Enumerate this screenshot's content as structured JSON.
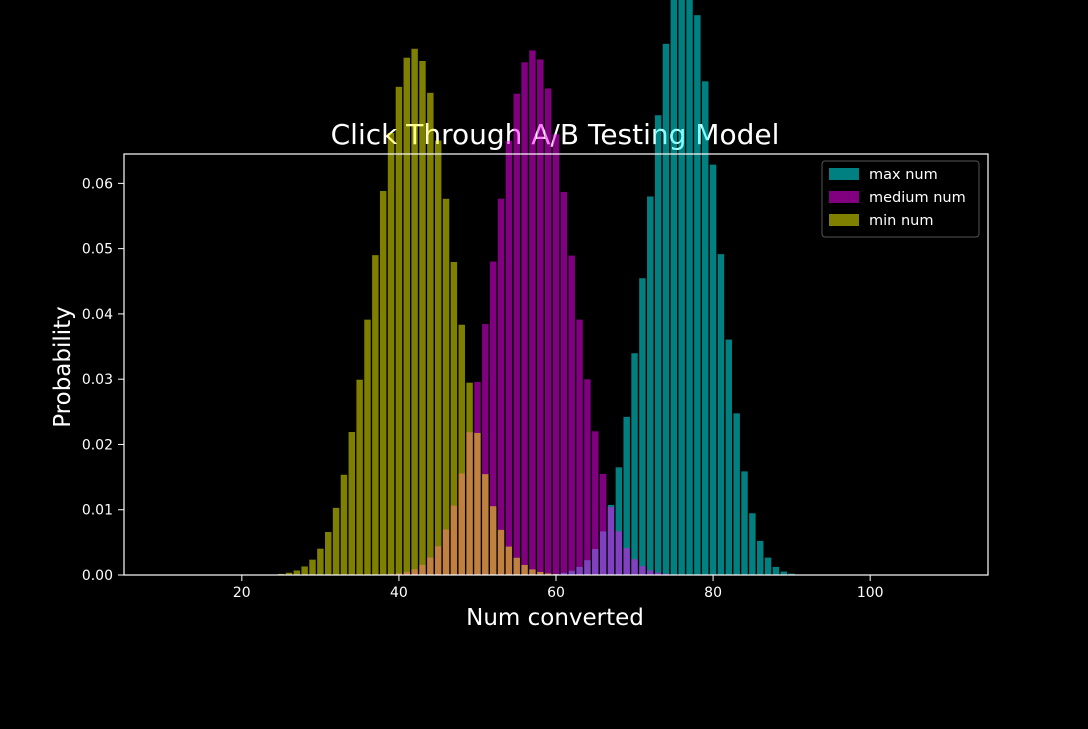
{
  "chart_data": {
    "type": "bar",
    "title": "Click Through A/B Testing Model",
    "xlabel": "Num converted",
    "ylabel": "Probability",
    "xlim": [
      5,
      115
    ],
    "ylim": [
      0,
      0.0645
    ],
    "xticks": [
      20,
      40,
      60,
      80,
      100
    ],
    "yticks": [
      0.0,
      0.01,
      0.02,
      0.03,
      0.04,
      0.05,
      0.06
    ],
    "grid": false,
    "legend": "top-right",
    "bar_opacity": 0.5,
    "series": [
      {
        "name": "max num",
        "distribution": "binomial",
        "n": 100,
        "p": 0.76,
        "x_range": [
          55,
          106
        ],
        "color": "#00ffff"
      },
      {
        "name": "medium num",
        "distribution": "binomial",
        "n": 100,
        "p": 0.57,
        "x_range": [
          35,
          80
        ],
        "color": "#ff00ff"
      },
      {
        "name": "min num",
        "distribution": "binomial",
        "n": 100,
        "p": 0.42,
        "x_range": [
          21,
          65
        ],
        "color": "#ffff00"
      }
    ]
  }
}
